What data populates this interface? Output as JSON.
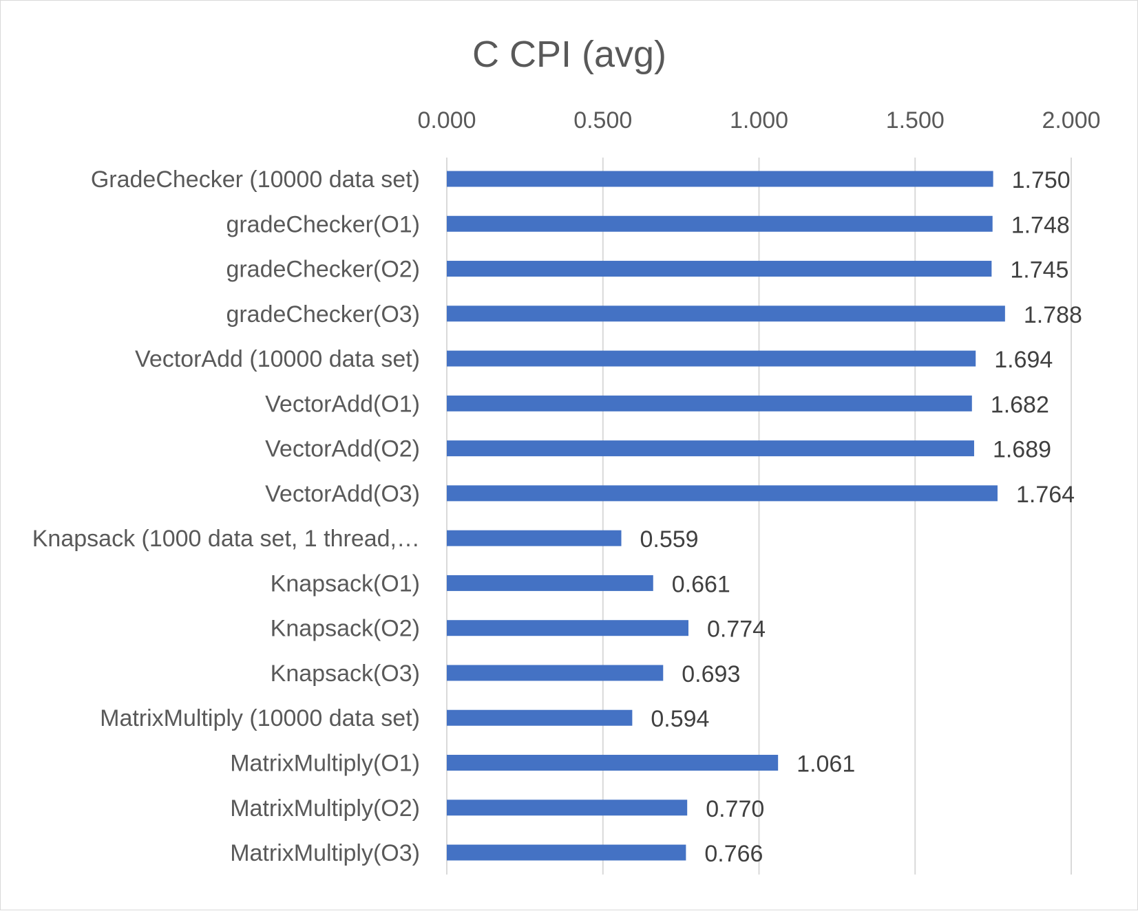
{
  "chart_data": {
    "type": "bar",
    "orientation": "horizontal",
    "title": "C CPI (avg)",
    "xlabel": "",
    "ylabel": "",
    "xlim": [
      0,
      2
    ],
    "ticks": [
      "0.000",
      "0.500",
      "1.000",
      "1.500",
      "2.000"
    ],
    "tick_values": [
      0,
      0.5,
      1,
      1.5,
      2
    ],
    "axis_position": "top",
    "grid": true,
    "legend": "none",
    "bar_color": "#4472c4",
    "categories": [
      "GradeChecker (10000 data set)",
      "gradeChecker(O1)",
      "gradeChecker(O2)",
      "gradeChecker(O3)",
      "VectorAdd (10000 data set)",
      "VectorAdd(O1)",
      "VectorAdd(O2)",
      "VectorAdd(O3)",
      "Knapsack (1000 data set, 1 thread,…",
      "Knapsack(O1)",
      "Knapsack(O2)",
      "Knapsack(O3)",
      "MatrixMultiply (10000 data set)",
      "MatrixMultiply(O1)",
      "MatrixMultiply(O2)",
      "MatrixMultiply(O3)"
    ],
    "values": [
      1.75,
      1.748,
      1.745,
      1.788,
      1.694,
      1.682,
      1.689,
      1.764,
      0.559,
      0.661,
      0.774,
      0.693,
      0.594,
      1.061,
      0.77,
      0.766
    ],
    "value_labels": [
      "1.750",
      "1.748",
      "1.745",
      "1.788",
      "1.694",
      "1.682",
      "1.689",
      "1.764",
      "0.559",
      "0.661",
      "0.774",
      "0.693",
      "0.594",
      "1.061",
      "0.770",
      "0.766"
    ]
  }
}
